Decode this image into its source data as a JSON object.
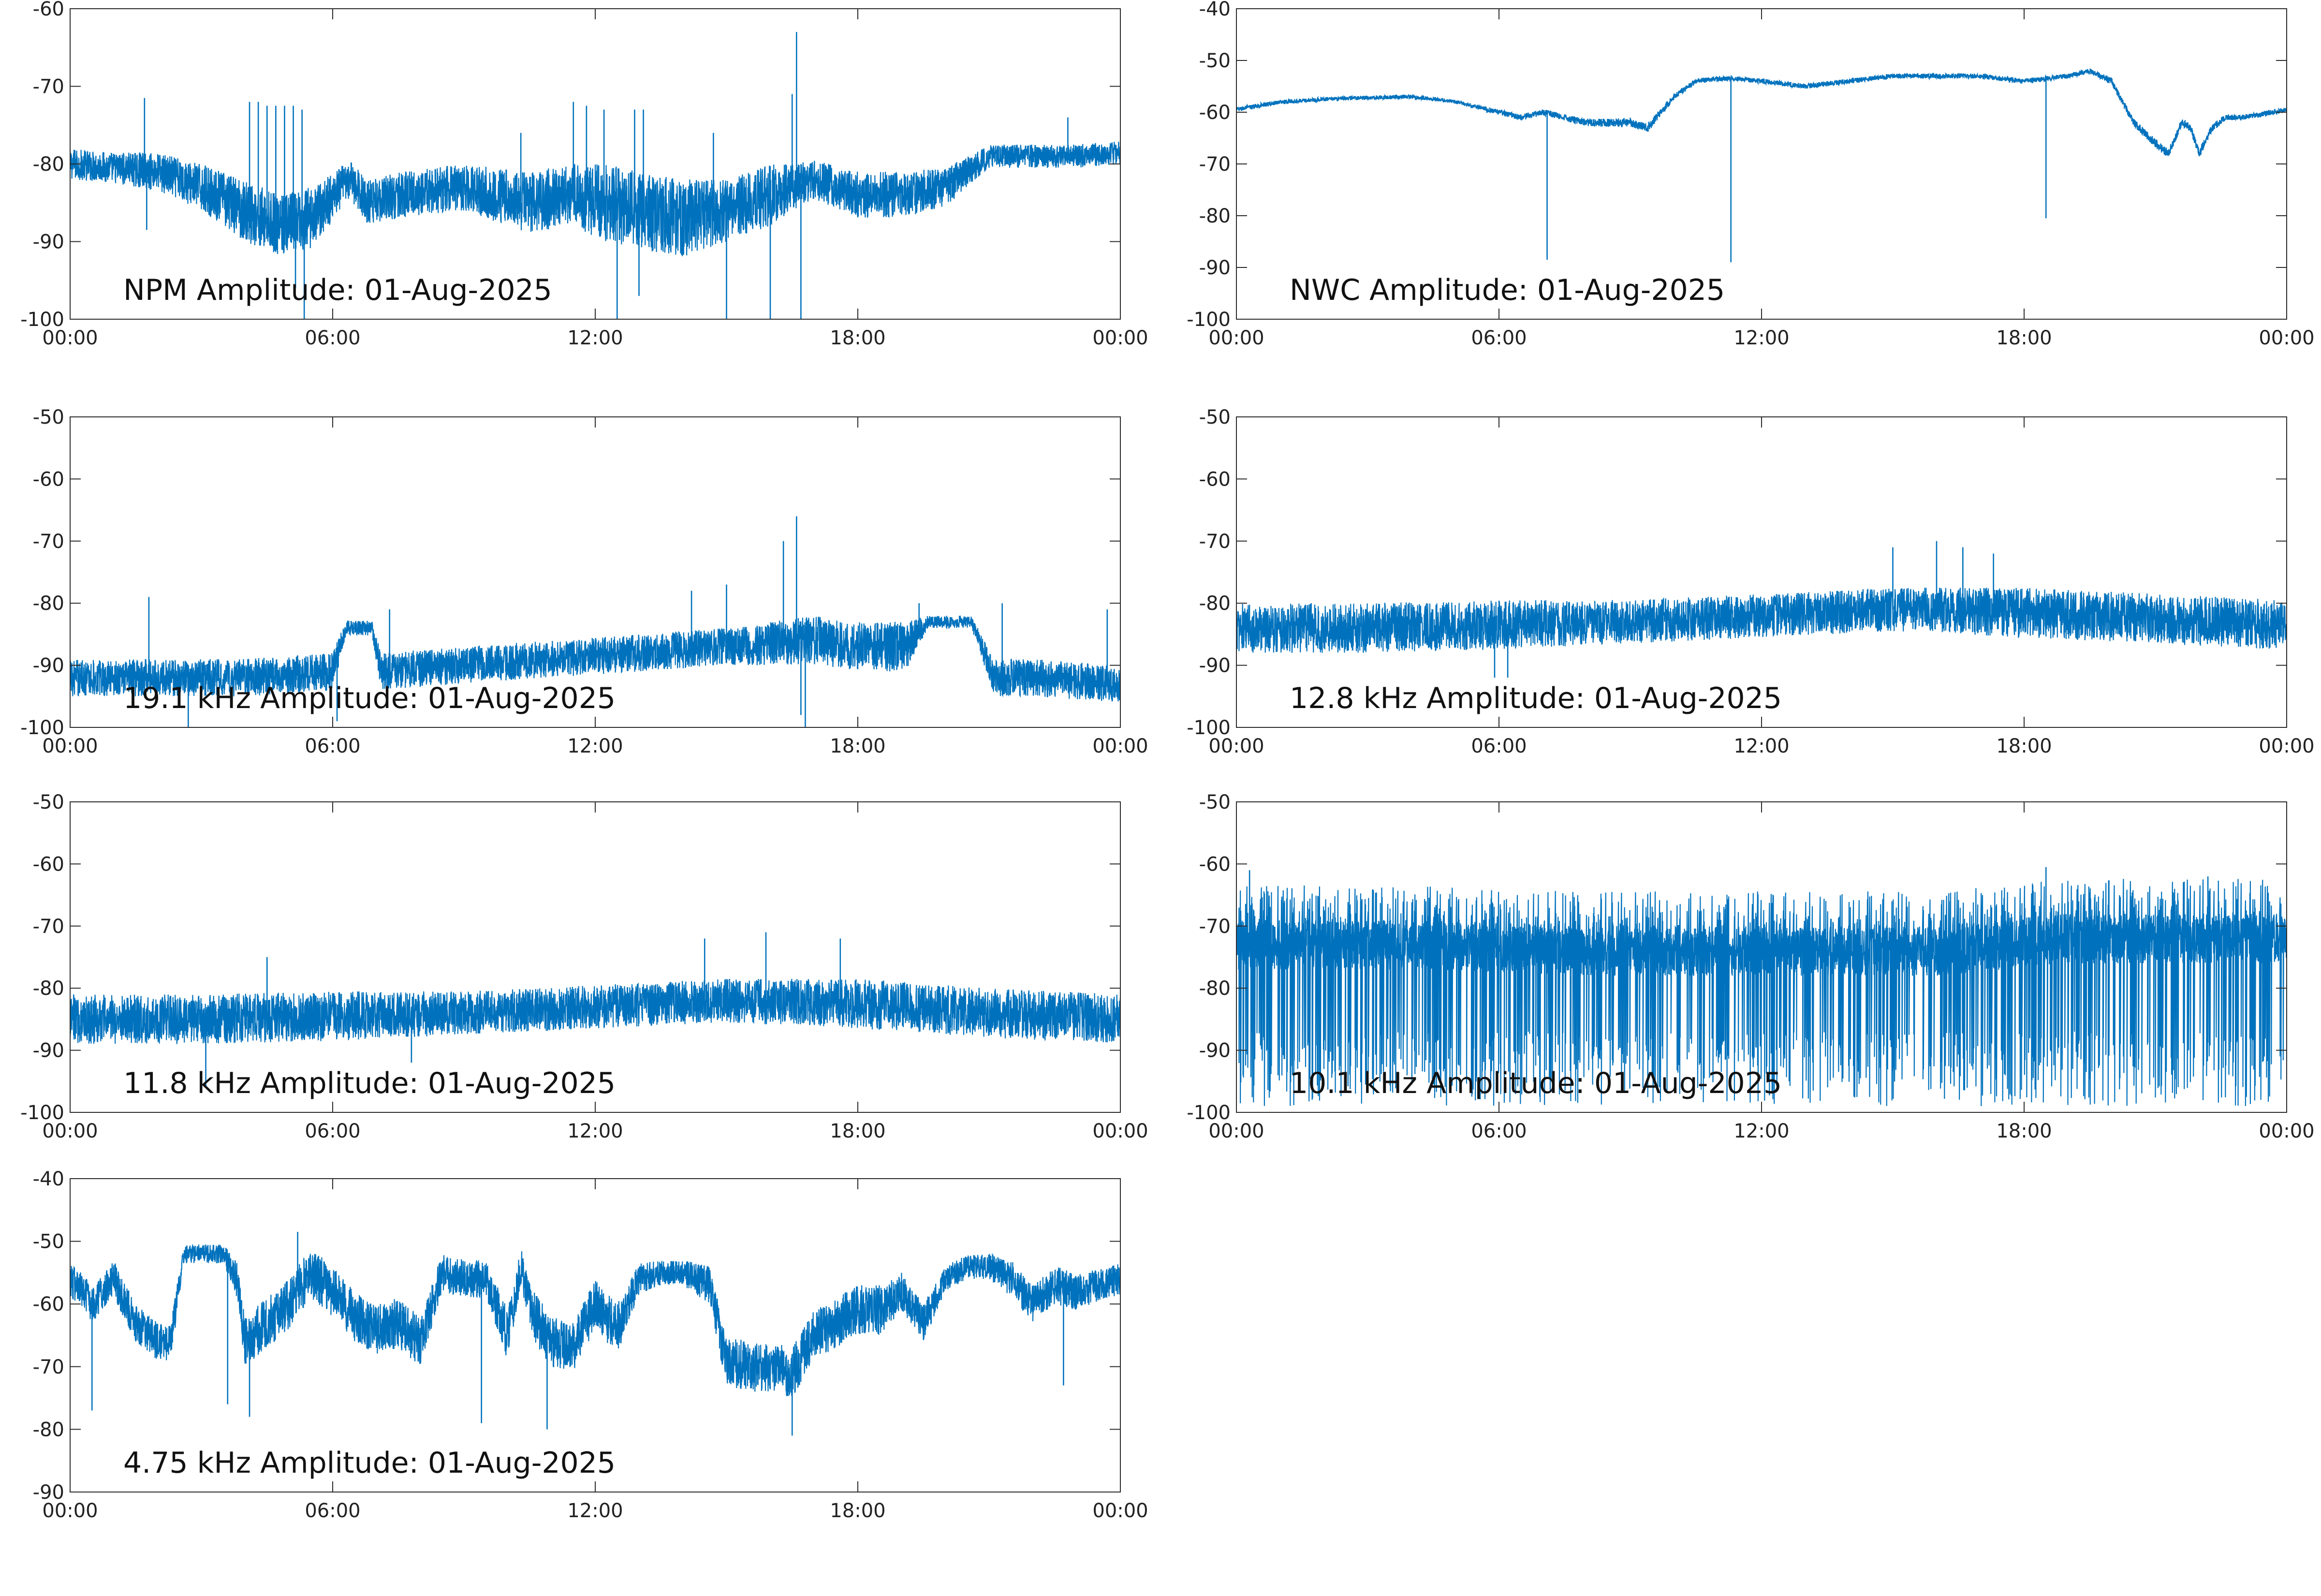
{
  "figure": {
    "line_color": "#0072bd",
    "axes_color": "#2b2b2b",
    "background": "#ffffff"
  },
  "chart_data": [
    {
      "type": "line",
      "title": "NPM Amplitude: 01-Aug-2025",
      "xlabel": "",
      "ylabel": "",
      "x_unit": "hours",
      "xlim": [
        0,
        24
      ],
      "ylim": [
        -100,
        -60
      ],
      "x_ticks": [
        "00:00",
        "06:00",
        "12:00",
        "18:00",
        "00:00"
      ],
      "y_ticks": [
        "-60",
        "-70",
        "-80",
        "-90",
        "-100"
      ],
      "grid": false,
      "signal": {
        "x": [
          0,
          1,
          2,
          3,
          4,
          4.8,
          5.5,
          6.4,
          6.8,
          7.5,
          9,
          10.5,
          11.5,
          12.2,
          13,
          14,
          15,
          16,
          16.5,
          17,
          18,
          19,
          20,
          21,
          22,
          23,
          24
        ],
        "y": [
          -80,
          -80.5,
          -81,
          -83,
          -86,
          -88,
          -87,
          -82,
          -85,
          -84,
          -83,
          -85,
          -84,
          -85,
          -86,
          -87,
          -86,
          -84,
          -83,
          -82,
          -84,
          -84,
          -83,
          -79,
          -79,
          -79,
          -78.5
        ],
        "noise": [
          2,
          2,
          2.5,
          3,
          4,
          4,
          4,
          2.5,
          3,
          3,
          3,
          4,
          4,
          5,
          5,
          5,
          4,
          4,
          3,
          2.5,
          3,
          3,
          2.5,
          1.5,
          1.5,
          1.5,
          1.5
        ]
      },
      "spikes": [
        {
          "x": 1.7,
          "y": -71.5
        },
        {
          "x": 1.75,
          "y": -88.5
        },
        {
          "x": 4.1,
          "y": -72
        },
        {
          "x": 4.3,
          "y": -72
        },
        {
          "x": 4.5,
          "y": -72.5
        },
        {
          "x": 4.7,
          "y": -72.5
        },
        {
          "x": 4.9,
          "y": -72.5
        },
        {
          "x": 5.1,
          "y": -72.5
        },
        {
          "x": 5.3,
          "y": -73
        },
        {
          "x": 5.35,
          "y": -100
        },
        {
          "x": 5.15,
          "y": -96
        },
        {
          "x": 10.3,
          "y": -76
        },
        {
          "x": 11.5,
          "y": -72
        },
        {
          "x": 11.8,
          "y": -72.5
        },
        {
          "x": 12.2,
          "y": -73
        },
        {
          "x": 12.5,
          "y": -100
        },
        {
          "x": 12.9,
          "y": -73
        },
        {
          "x": 13.1,
          "y": -73
        },
        {
          "x": 13.0,
          "y": -97
        },
        {
          "x": 14.7,
          "y": -76
        },
        {
          "x": 15.0,
          "y": -100
        },
        {
          "x": 16.0,
          "y": -100
        },
        {
          "x": 16.6,
          "y": -63
        },
        {
          "x": 16.7,
          "y": -100
        },
        {
          "x": 16.5,
          "y": -71
        },
        {
          "x": 22.8,
          "y": -74
        }
      ]
    },
    {
      "type": "line",
      "title": "NWC Amplitude: 01-Aug-2025",
      "xlabel": "",
      "ylabel": "",
      "x_unit": "hours",
      "xlim": [
        0,
        24
      ],
      "ylim": [
        -100,
        -40
      ],
      "x_ticks": [
        "00:00",
        "06:00",
        "12:00",
        "18:00",
        "00:00"
      ],
      "y_ticks": [
        "-40",
        "-50",
        "-60",
        "-70",
        "-80",
        "-90",
        "-100"
      ],
      "grid": false,
      "signal": {
        "x": [
          0,
          1,
          2,
          3,
          4,
          5,
          6,
          6.5,
          7,
          7.5,
          8,
          8.5,
          9,
          9.4,
          10,
          10.5,
          11,
          11.5,
          12,
          13,
          14,
          15,
          16,
          17,
          18,
          19,
          19.5,
          20,
          20.5,
          21,
          21.3,
          21.6,
          21.8,
          22,
          22.3,
          22.6,
          23,
          24
        ],
        "y": [
          -59.5,
          -58,
          -57.5,
          -57.2,
          -57,
          -58,
          -60,
          -61,
          -60,
          -61,
          -62,
          -62,
          -62,
          -63,
          -57,
          -54,
          -53.5,
          -53.5,
          -54,
          -55,
          -54,
          -53,
          -53,
          -53,
          -54,
          -53,
          -52,
          -54,
          -62,
          -66,
          -68,
          -62,
          -63,
          -68,
          -63,
          -61,
          -61,
          -59.5
        ],
        "noise": [
          0.5,
          0.4,
          0.4,
          0.4,
          0.4,
          0.4,
          0.5,
          0.6,
          0.6,
          0.6,
          0.8,
          0.8,
          0.8,
          0.9,
          0.6,
          0.5,
          0.5,
          0.5,
          0.5,
          0.5,
          0.5,
          0.5,
          0.5,
          0.5,
          0.5,
          0.5,
          0.5,
          0.6,
          0.8,
          0.9,
          0.9,
          0.8,
          0.8,
          0.9,
          0.8,
          0.6,
          0.5,
          0.5
        ]
      },
      "spikes": [
        {
          "x": 7.1,
          "y": -88.5
        },
        {
          "x": 11.3,
          "y": -89
        },
        {
          "x": 18.5,
          "y": -80.5
        }
      ]
    },
    {
      "type": "line",
      "title": "19.1 kHz Amplitude: 01-Aug-2025",
      "xlabel": "",
      "ylabel": "",
      "x_unit": "hours",
      "xlim": [
        0,
        24
      ],
      "ylim": [
        -100,
        -50
      ],
      "x_ticks": [
        "00:00",
        "06:00",
        "12:00",
        "18:00",
        "00:00"
      ],
      "y_ticks": [
        "-50",
        "-60",
        "-70",
        "-80",
        "-90",
        "-100"
      ],
      "grid": false,
      "signal": {
        "x": [
          0,
          2,
          4,
          6,
          6.3,
          6.9,
          7.1,
          9,
          11,
          13,
          15,
          17,
          18,
          19.1,
          19.6,
          20.6,
          21.1,
          22,
          24
        ],
        "y": [
          -92,
          -92,
          -92,
          -91,
          -84,
          -84,
          -91,
          -90,
          -89,
          -88,
          -87,
          -86,
          -87,
          -87,
          -83,
          -83,
          -92,
          -92,
          -93
        ],
        "noise": [
          3,
          3,
          3,
          3,
          1.2,
          1.2,
          3,
          3,
          3,
          3,
          3,
          4,
          4,
          4,
          1,
          1,
          3,
          3,
          3
        ]
      },
      "spikes": [
        {
          "x": 1.8,
          "y": -79
        },
        {
          "x": 2.7,
          "y": -100
        },
        {
          "x": 6.1,
          "y": -99
        },
        {
          "x": 7.3,
          "y": -81
        },
        {
          "x": 14.2,
          "y": -78
        },
        {
          "x": 15.0,
          "y": -77
        },
        {
          "x": 16.3,
          "y": -70
        },
        {
          "x": 16.6,
          "y": -66
        },
        {
          "x": 16.8,
          "y": -100
        },
        {
          "x": 16.7,
          "y": -98
        },
        {
          "x": 19.4,
          "y": -80
        },
        {
          "x": 20.0,
          "y": -83
        },
        {
          "x": 21.3,
          "y": -80
        },
        {
          "x": 23.7,
          "y": -81
        }
      ]
    },
    {
      "type": "line",
      "title": "12.8 kHz Amplitude: 01-Aug-2025",
      "xlabel": "",
      "ylabel": "",
      "x_unit": "hours",
      "xlim": [
        0,
        24
      ],
      "ylim": [
        -100,
        -50
      ],
      "x_ticks": [
        "00:00",
        "06:00",
        "12:00",
        "18:00",
        "00:00"
      ],
      "y_ticks": [
        "-50",
        "-60",
        "-70",
        "-80",
        "-90",
        "-100"
      ],
      "grid": false,
      "signal": {
        "x": [
          0,
          3,
          6,
          9,
          12,
          15,
          18,
          21,
          24
        ],
        "y": [
          -84,
          -84,
          -83.5,
          -83,
          -82,
          -81,
          -81.5,
          -82.5,
          -83.5
        ],
        "noise": [
          4,
          4,
          4,
          3.5,
          3.5,
          3.5,
          4,
          4,
          4
        ]
      },
      "spikes": [
        {
          "x": 5.9,
          "y": -92
        },
        {
          "x": 6.2,
          "y": -92
        },
        {
          "x": 15.0,
          "y": -71
        },
        {
          "x": 16.0,
          "y": -70
        },
        {
          "x": 16.6,
          "y": -71
        },
        {
          "x": 17.3,
          "y": -72
        }
      ]
    },
    {
      "type": "line",
      "title": "11.8 kHz Amplitude: 01-Aug-2025",
      "xlabel": "",
      "ylabel": "",
      "x_unit": "hours",
      "xlim": [
        0,
        24
      ],
      "ylim": [
        -100,
        -50
      ],
      "x_ticks": [
        "00:00",
        "06:00",
        "12:00",
        "18:00",
        "00:00"
      ],
      "y_ticks": [
        "-50",
        "-60",
        "-70",
        "-80",
        "-90",
        "-100"
      ],
      "grid": false,
      "signal": {
        "x": [
          0,
          3,
          6,
          9,
          12,
          15,
          18,
          21,
          24
        ],
        "y": [
          -85,
          -85,
          -84.5,
          -84,
          -83,
          -82,
          -82.5,
          -84,
          -85
        ],
        "noise": [
          4,
          4,
          4,
          3.5,
          3.5,
          3.5,
          4,
          4,
          4
        ]
      },
      "spikes": [
        {
          "x": 3.1,
          "y": -96
        },
        {
          "x": 4.5,
          "y": -75
        },
        {
          "x": 7.8,
          "y": -92
        },
        {
          "x": 14.5,
          "y": -72
        },
        {
          "x": 15.9,
          "y": -71
        },
        {
          "x": 17.6,
          "y": -72
        }
      ]
    },
    {
      "type": "line",
      "title": "10.1 kHz Amplitude: 01-Aug-2025",
      "xlabel": "",
      "ylabel": "",
      "x_unit": "hours",
      "xlim": [
        0,
        24
      ],
      "ylim": [
        -100,
        -50
      ],
      "x_ticks": [
        "00:00",
        "06:00",
        "12:00",
        "18:00",
        "00:00"
      ],
      "y_ticks": [
        "-50",
        "-60",
        "-70",
        "-80",
        "-90",
        "-100"
      ],
      "grid": false,
      "signal": {
        "x": [
          0,
          4,
          8,
          12,
          16,
          19,
          24
        ],
        "y": [
          -73,
          -73,
          -74,
          -74,
          -74,
          -72,
          -72
        ],
        "noise": [
          4,
          4,
          4,
          4,
          4,
          4,
          4
        ]
      },
      "dips": {
        "period_hours": 0.2,
        "depth_to": -99,
        "prob": 0.8
      },
      "spikes": [
        {
          "x": 0.3,
          "y": -61
        },
        {
          "x": 18.5,
          "y": -60.5
        },
        {
          "x": 22.2,
          "y": -62
        }
      ]
    },
    {
      "type": "line",
      "title": "4.75 kHz Amplitude: 01-Aug-2025",
      "xlabel": "",
      "ylabel": "",
      "x_unit": "hours",
      "xlim": [
        0,
        24
      ],
      "ylim": [
        -90,
        -40
      ],
      "x_ticks": [
        "00:00",
        "06:00",
        "12:00",
        "18:00",
        "00:00"
      ],
      "y_ticks": [
        "-40",
        "-50",
        "-60",
        "-70",
        "-80",
        "-90"
      ],
      "grid": false,
      "signal": {
        "x": [
          0,
          0.5,
          1,
          1.5,
          2,
          2.3,
          2.6,
          3.5,
          3.8,
          4,
          4.5,
          5,
          5.5,
          6,
          6.5,
          7,
          7.5,
          8,
          8.5,
          9,
          9.5,
          10,
          10.3,
          10.6,
          11,
          11.5,
          12,
          12.5,
          13,
          13.5,
          14,
          14.6,
          15,
          15.5,
          16,
          16.5,
          17,
          17.5,
          18,
          18.5,
          19,
          19.5,
          20,
          20.5,
          21,
          21.5,
          22,
          22.5,
          23,
          23.5,
          24
        ],
        "y": [
          -56,
          -60,
          -56,
          -63,
          -66,
          -66,
          -52,
          -52,
          -56,
          -66,
          -63,
          -60,
          -55,
          -58,
          -62,
          -64,
          -63,
          -66,
          -55,
          -56,
          -56,
          -65,
          -54,
          -62,
          -66,
          -67,
          -60,
          -64,
          -56,
          -55,
          -55,
          -57,
          -69,
          -70,
          -70,
          -71,
          -65,
          -63,
          -61,
          -61,
          -58,
          -63,
          -56,
          -54,
          -54,
          -56,
          -60,
          -57,
          -58,
          -57,
          -56
        ],
        "noise": [
          3,
          3,
          3,
          3,
          3,
          3,
          1.5,
          1.5,
          3,
          4,
          4,
          4,
          4,
          4,
          4,
          4,
          4,
          4,
          3,
          3,
          3,
          4,
          3,
          4,
          4,
          4,
          4,
          4,
          2.5,
          2,
          2,
          3,
          4,
          4,
          4,
          4,
          4,
          4,
          4,
          4,
          3,
          3,
          2,
          2,
          2,
          3,
          3,
          3,
          3,
          2.5,
          2.5
        ]
      },
      "spikes": [
        {
          "x": 0.5,
          "y": -77
        },
        {
          "x": 3.6,
          "y": -76
        },
        {
          "x": 4.1,
          "y": -78
        },
        {
          "x": 5.2,
          "y": -48.5
        },
        {
          "x": 9.4,
          "y": -79
        },
        {
          "x": 10.9,
          "y": -80
        },
        {
          "x": 16.5,
          "y": -81
        },
        {
          "x": 22.7,
          "y": -73
        }
      ]
    }
  ]
}
